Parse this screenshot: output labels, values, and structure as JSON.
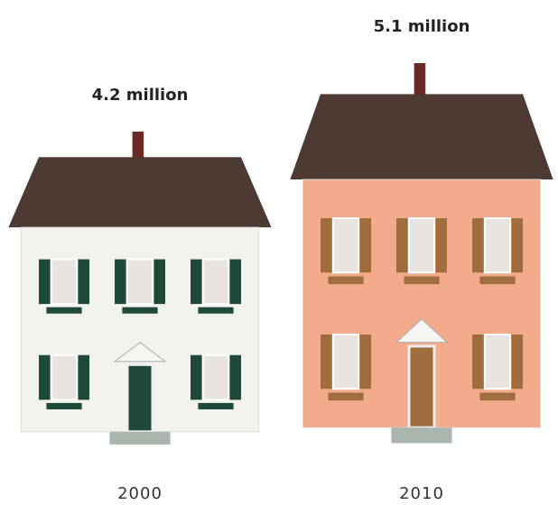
{
  "chart_data": {
    "type": "pictograph",
    "categories": [
      "2000",
      "2010"
    ],
    "values": [
      4.2,
      5.1
    ],
    "value_labels": [
      "4.2 million",
      "5.1 million"
    ],
    "colors": [
      "#f3f3ee",
      "#f2aa8b"
    ]
  }
}
